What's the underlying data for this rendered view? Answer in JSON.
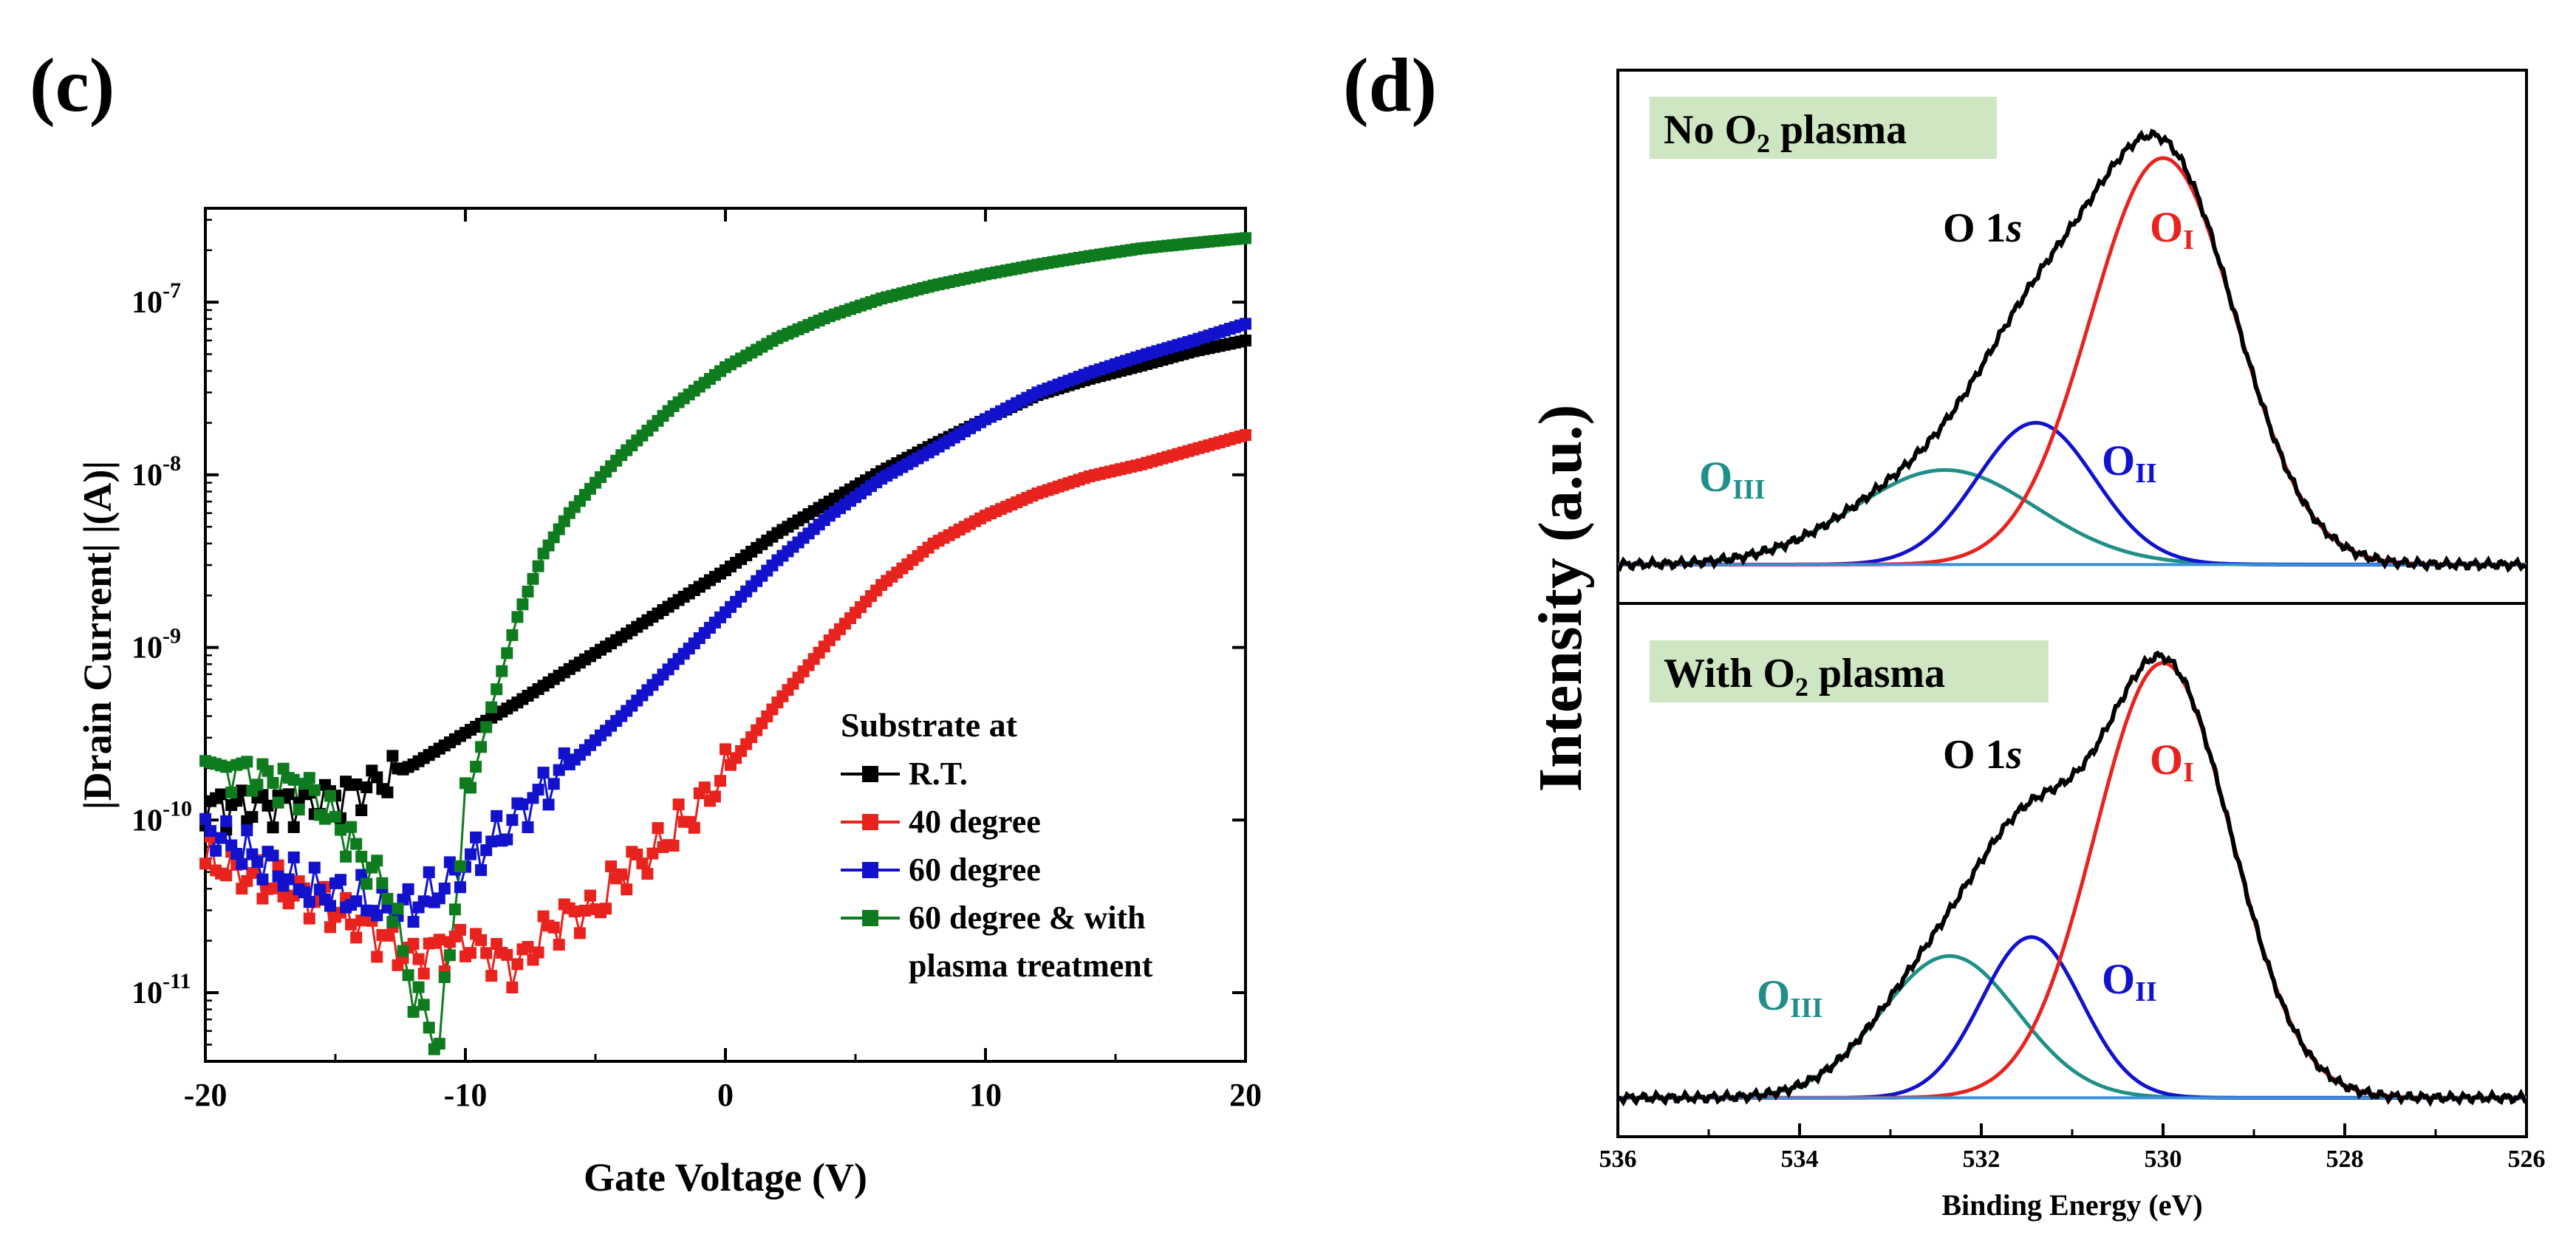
{
  "colors": {
    "black": "#000000",
    "red": "#e8231e",
    "blue": "#1212cc",
    "green": "#0f7b1f",
    "teal": "#1f8f88",
    "baseline": "#3b8fd6",
    "labelbox": "#cfe6c2"
  },
  "panel_c": {
    "label": "(c)",
    "ylabel": "|Drain Current| |(A)|",
    "legend_title": "Substrate at",
    "legend_entries": [
      "R.T.",
      "40 degree",
      "60 degree",
      "60 degree & with",
      "plasma treatment"
    ]
  },
  "panel_d": {
    "label": "(d)",
    "ylabel": "Intensity (a.u.)",
    "top_box_prefix": "No O",
    "top_box_suffix": " plasma",
    "bottom_box_prefix": "With O",
    "bottom_box_suffix": " plasma",
    "box_sub": "2",
    "o1s_prefix": "O 1",
    "o1s_suffix": "s",
    "peak_letter": "O",
    "peak_subs": [
      "I",
      "II",
      "III"
    ]
  },
  "chart_data": [
    {
      "type": "scatter",
      "title": "(c)",
      "xlabel": "Gate Voltage (V)",
      "ylabel": "|Drain Current| |(A)|",
      "xlim": [
        -20,
        20
      ],
      "ylim": [
        4e-12,
        3.5e-07
      ],
      "yscale": "log",
      "xticks": [
        -20,
        -10,
        0,
        10,
        20
      ],
      "xtick_labels": [
        "-20",
        "-10",
        "0",
        "10",
        "20"
      ],
      "yticks": [
        1e-11,
        1e-10,
        1e-09,
        1e-08,
        1e-07
      ],
      "ytick_mantissa": "10",
      "ytick_exponents": [
        "-11",
        "-10",
        "-9",
        "-8",
        "-7"
      ],
      "legend_title": "Substrate at",
      "series": [
        {
          "name": "R.T.",
          "color": "#000000",
          "x": [
            -20,
            -18,
            -16,
            -14,
            -12,
            -10,
            -8,
            -6,
            -4,
            -2,
            0,
            2,
            4,
            6,
            8,
            10,
            12,
            14,
            16,
            18,
            20
          ],
          "y": [
            1.2e-10,
            1.2e-10,
            1.25e-10,
            1.5e-10,
            2.1e-10,
            3.2e-10,
            4.8e-10,
            7.5e-10,
            1.15e-09,
            1.8e-09,
            2.8e-09,
            4.6e-09,
            7e-09,
            1.05e-08,
            1.5e-08,
            2.1e-08,
            2.9e-08,
            3.6e-08,
            4.3e-08,
            5.2e-08,
            6e-08
          ]
        },
        {
          "name": "40 degree",
          "color": "#e8231e",
          "x": [
            -20,
            -18,
            -16,
            -14,
            -12,
            -10,
            -8,
            -7,
            -6,
            -5,
            -4,
            -3,
            -2,
            -1,
            0,
            2,
            4,
            6,
            8,
            10,
            12,
            14,
            16,
            18,
            20
          ],
          "y": [
            6e-11,
            4.5e-11,
            3.5e-11,
            2.5e-11,
            1.6e-11,
            2e-11,
            1.4e-11,
            2.2e-11,
            2.8e-11,
            3e-11,
            5e-11,
            6e-11,
            8.5e-11,
            1.2e-10,
            1.9e-10,
            4.8e-10,
            1.1e-09,
            2.3e-09,
            4e-09,
            5.8e-09,
            7.8e-09,
            9.8e-09,
            1.15e-08,
            1.4e-08,
            1.7e-08
          ]
        },
        {
          "name": "60 degree",
          "color": "#1212cc",
          "x": [
            -20,
            -18,
            -16,
            -14,
            -13,
            -12,
            -11,
            -10,
            -9,
            -8,
            -7,
            -6,
            -4,
            -2,
            0,
            2,
            4,
            6,
            8,
            10,
            12,
            14,
            16,
            18,
            20
          ],
          "y": [
            9e-11,
            6e-11,
            4e-11,
            3.5e-11,
            3e-11,
            3.2e-11,
            4e-11,
            5.5e-11,
            7.5e-11,
            1.05e-10,
            1.5e-10,
            2.1e-10,
            4e-10,
            8e-10,
            1.6e-09,
            3.2e-09,
            5.8e-09,
            9.5e-09,
            1.4e-08,
            2.1e-08,
            3e-08,
            3.9e-08,
            4.9e-08,
            6e-08,
            7.5e-08
          ]
        },
        {
          "name": "60 degree & with plasma treatment",
          "color": "#0f7b1f",
          "x": [
            -20,
            -18,
            -16,
            -15,
            -14,
            -13,
            -12,
            -11,
            -10,
            -9,
            -8,
            -7,
            -6,
            -5,
            -4,
            -2,
            0,
            2,
            4,
            6,
            8,
            10,
            12,
            14,
            16,
            18,
            20
          ],
          "y": [
            2.2e-10,
            1.8e-10,
            1.5e-10,
            1e-10,
            6e-11,
            4e-11,
            1e-11,
            5e-12,
            1.2e-10,
            4.5e-10,
            1.5e-09,
            3.5e-09,
            6e-09,
            9e-09,
            1.3e-08,
            2.5e-08,
            4.2e-08,
            6.2e-08,
            8.3e-08,
            1.05e-07,
            1.25e-07,
            1.45e-07,
            1.65e-07,
            1.85e-07,
            2.05e-07,
            2.2e-07,
            2.35e-07
          ]
        }
      ]
    },
    {
      "type": "line",
      "title": "No O2 plasma",
      "xlabel": "Binding Energy (eV)",
      "ylabel": "Intensity (a.u.)",
      "xlim": [
        536,
        526
      ],
      "baseline": 0.04,
      "peaks": [
        {
          "name": "OI",
          "color": "#e8231e",
          "center": 530.0,
          "height": 0.86,
          "width": 0.8
        },
        {
          "name": "OII",
          "color": "#1212cc",
          "center": 531.4,
          "height": 0.3,
          "width": 0.65
        },
        {
          "name": "OIII",
          "color": "#1f8f88",
          "center": 532.4,
          "height": 0.2,
          "width": 1.0
        }
      ],
      "envelope": {
        "name": "O 1s",
        "color": "#000000"
      }
    },
    {
      "type": "line",
      "title": "With O2 plasma",
      "xlabel": "Binding Energy (eV)",
      "ylabel": "Intensity (a.u.)",
      "xlim": [
        536,
        526
      ],
      "xticks": [
        536,
        534,
        532,
        530,
        528,
        526
      ],
      "xtick_labels": [
        "536",
        "534",
        "532",
        "530",
        "528",
        "526"
      ],
      "baseline": 0.04,
      "peaks": [
        {
          "name": "OI",
          "color": "#e8231e",
          "center": 530.0,
          "height": 0.92,
          "width": 0.75
        },
        {
          "name": "OII",
          "color": "#1212cc",
          "center": 531.45,
          "height": 0.34,
          "width": 0.55
        },
        {
          "name": "OIII",
          "color": "#1f8f88",
          "center": 532.35,
          "height": 0.3,
          "width": 0.75
        }
      ],
      "envelope": {
        "name": "O 1s",
        "color": "#000000"
      }
    }
  ]
}
